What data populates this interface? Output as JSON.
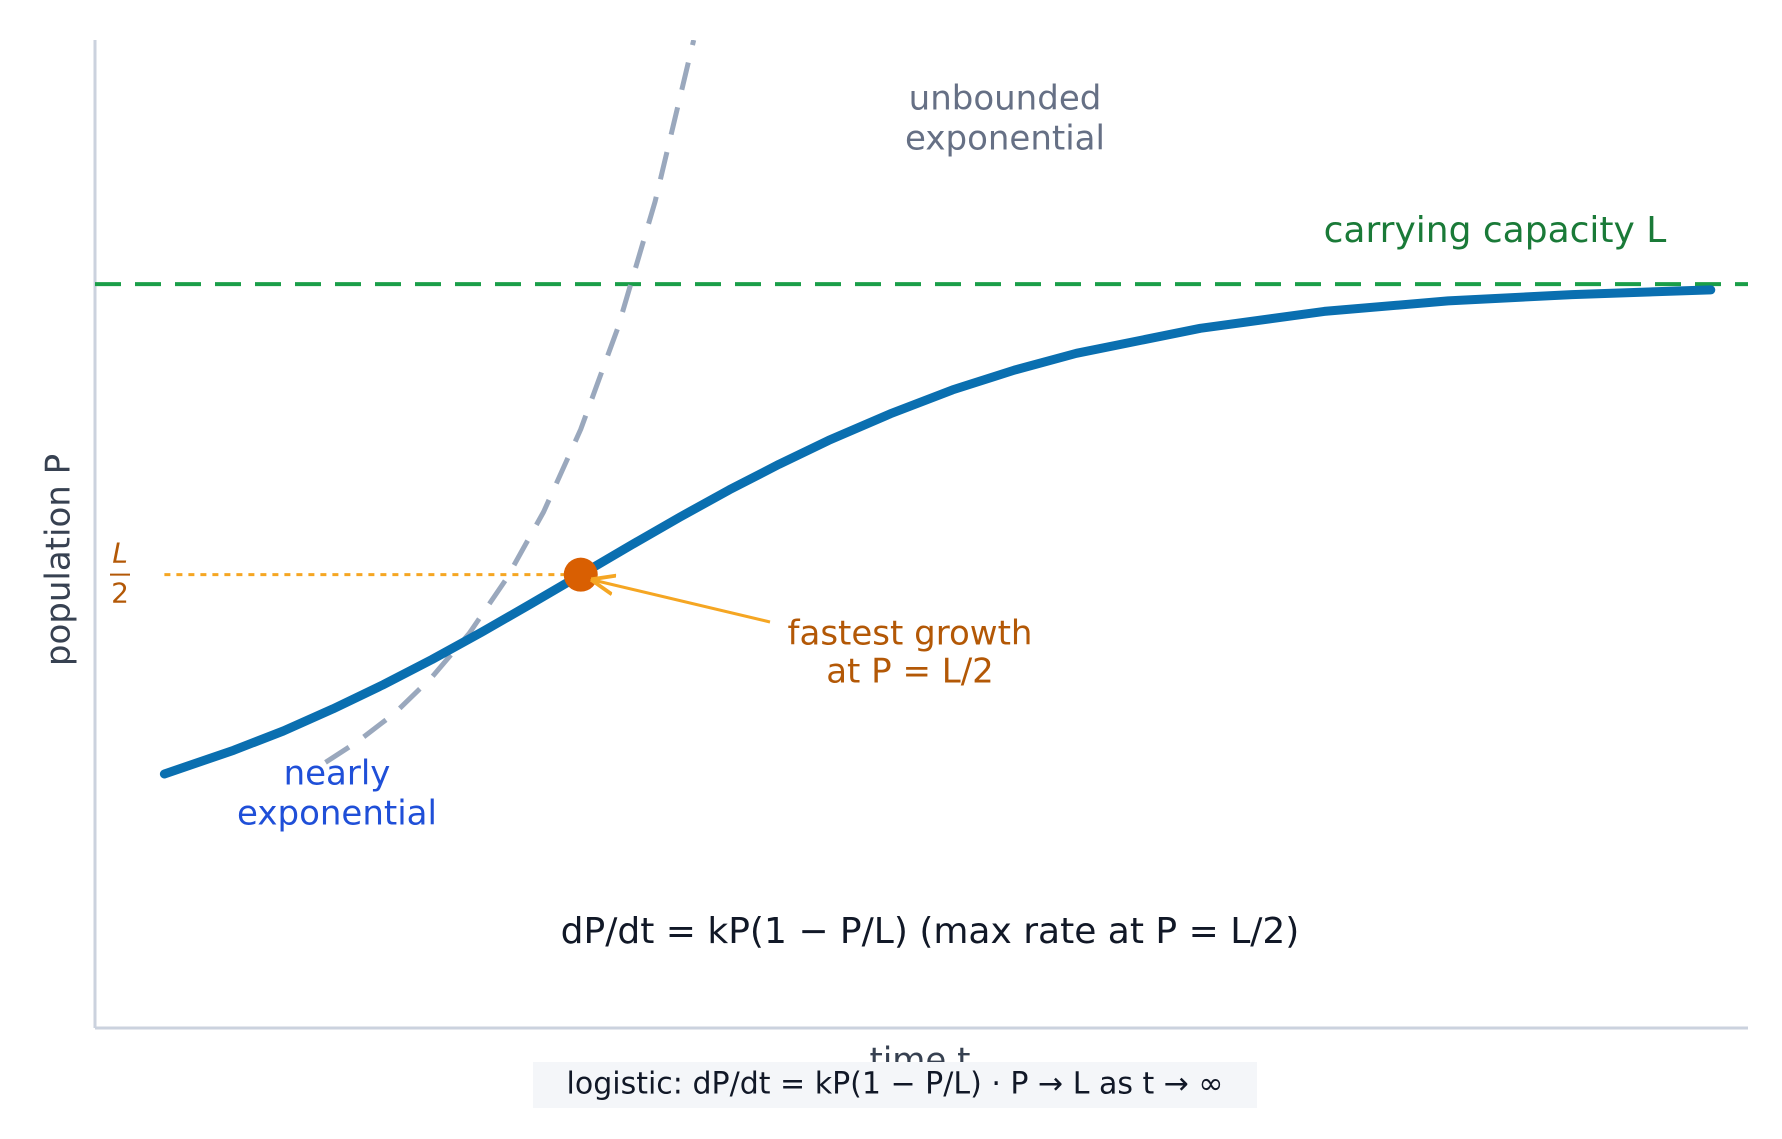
{
  "chart_data": {
    "type": "line",
    "x_label": "time  t",
    "y_label": "population  P",
    "xlim": [
      -1.96,
      4.71
    ],
    "ylim": [
      -0.28,
      1.42
    ],
    "grid": false,
    "series": [
      {
        "color": "#0a6fb0",
        "style": "solid",
        "x": [
          -1.68,
          -1.4,
          -1.2,
          -1.0,
          -0.8,
          -0.6,
          -0.4,
          -0.2,
          0,
          0.2,
          0.4,
          0.6,
          0.8,
          1.0,
          1.25,
          1.5,
          1.75,
          2.0,
          2.5,
          3.0,
          3.5,
          4.0,
          4.56
        ],
        "values": [
          0.157,
          0.198,
          0.231,
          0.269,
          0.31,
          0.354,
          0.401,
          0.45,
          0.5,
          0.55,
          0.599,
          0.646,
          0.69,
          0.731,
          0.777,
          0.818,
          0.852,
          0.881,
          0.924,
          0.953,
          0.971,
          0.982,
          0.99
        ]
      },
      {
        "color": "#9aa8bd",
        "style": "dashed",
        "x": [
          -1.03,
          -0.9,
          -0.75,
          -0.6,
          -0.45,
          -0.3,
          -0.15,
          0,
          0.15,
          0.3,
          0.456
        ],
        "values": [
          0.177,
          0.213,
          0.262,
          0.324,
          0.399,
          0.493,
          0.608,
          0.75,
          0.925,
          1.142,
          1.42
        ]
      }
    ],
    "capacity": {
      "value": 1,
      "label": "carrying capacity L",
      "color": "#1a9e48"
    },
    "half_level": {
      "value": 0.5,
      "x_start": -1.68,
      "numerator": "L",
      "denominator": "2",
      "color": "#f5a623"
    },
    "highlight": {
      "x": 0,
      "y": 0.5,
      "color": "#d95f02"
    },
    "annotations": {
      "unbounded": [
        "unbounded",
        "exponential"
      ],
      "nearly": [
        "nearly",
        "exponential"
      ],
      "fastest": [
        "fastest growth",
        "at P = L/2"
      ]
    },
    "equation": "dP/dt = kP(1 − P/L)   (max rate at P = L/2)",
    "footer": "logistic: dP/dt = kP(1 − P/L)  ·  P → L as t → ∞"
  }
}
